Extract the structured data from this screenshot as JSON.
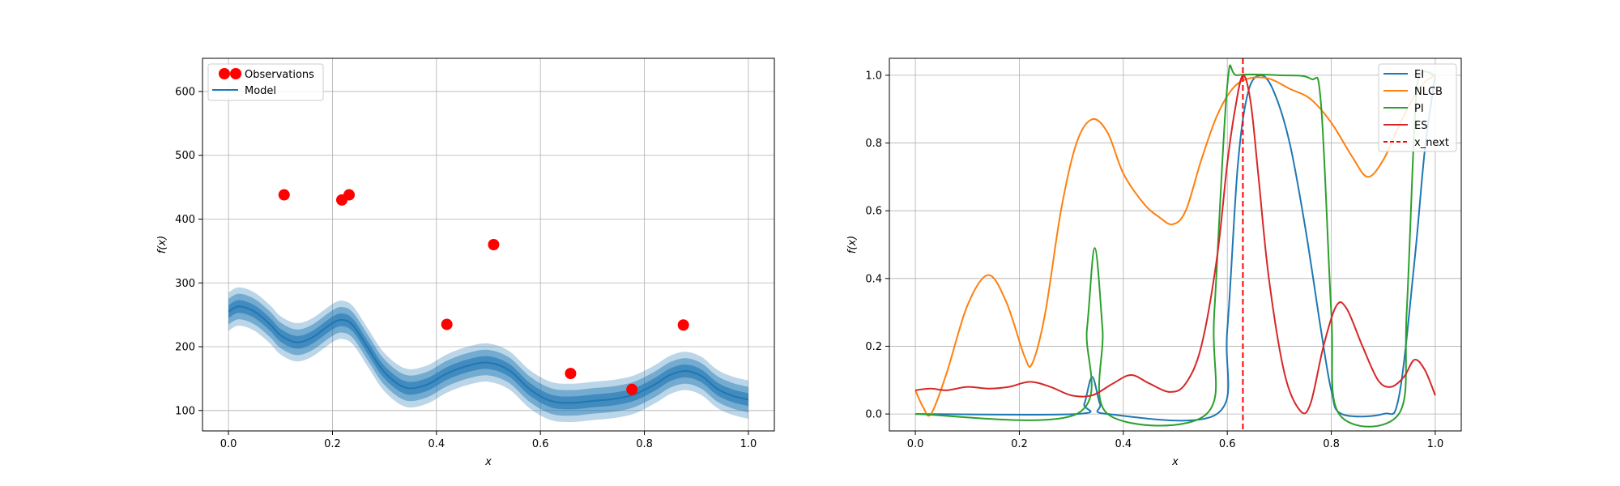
{
  "chart_data": [
    {
      "type": "line",
      "xlabel": "x",
      "ylabel": "f(x)",
      "xlim": [
        -0.05,
        1.05
      ],
      "ylim": [
        68,
        652
      ],
      "xticks": [
        0.0,
        0.2,
        0.4,
        0.6,
        0.8,
        1.0
      ],
      "xtick_labels": [
        "0.0",
        "0.2",
        "0.4",
        "0.6",
        "0.8",
        "1.0"
      ],
      "yticks": [
        100,
        200,
        300,
        400,
        500,
        600
      ],
      "ytick_labels": [
        "100",
        "200",
        "300",
        "400",
        "500",
        "600"
      ],
      "grid": true,
      "legend": {
        "placement": "top-left",
        "entries": [
          "Observations",
          "Model"
        ]
      },
      "colors": {
        "observations": "#ff0000",
        "model": "#1f77b4",
        "band": "#1f77b4"
      },
      "observations": {
        "name": "Observations",
        "x": [
          0.015,
          0.107,
          0.218,
          0.232,
          0.42,
          0.51,
          0.658,
          0.776,
          0.875
        ],
        "y": [
          628,
          438,
          430,
          438,
          235,
          360,
          158,
          133,
          234
        ]
      },
      "model": {
        "name": "Model",
        "x": [
          0.0,
          0.02,
          0.05,
          0.08,
          0.1,
          0.13,
          0.16,
          0.2,
          0.22,
          0.24,
          0.27,
          0.3,
          0.34,
          0.38,
          0.42,
          0.46,
          0.5,
          0.54,
          0.58,
          0.62,
          0.66,
          0.7,
          0.74,
          0.78,
          0.82,
          0.85,
          0.88,
          0.91,
          0.94,
          0.97,
          1.0
        ],
        "y": [
          255,
          263,
          255,
          235,
          218,
          207,
          214,
          237,
          242,
          233,
          196,
          160,
          136,
          140,
          158,
          170,
          175,
          163,
          133,
          115,
          112,
          115,
          118,
          125,
          141,
          156,
          162,
          154,
          134,
          123,
          117
        ],
        "band_widths": [
          10,
          20,
          30
        ]
      }
    },
    {
      "type": "line",
      "xlabel": "x",
      "ylabel": "f(x)",
      "xlim": [
        -0.05,
        1.05
      ],
      "ylim": [
        -0.05,
        1.05
      ],
      "xticks": [
        0.0,
        0.2,
        0.4,
        0.6,
        0.8,
        1.0
      ],
      "xtick_labels": [
        "0.0",
        "0.2",
        "0.4",
        "0.6",
        "0.8",
        "1.0"
      ],
      "yticks": [
        0.0,
        0.2,
        0.4,
        0.6,
        0.8,
        1.0
      ],
      "ytick_labels": [
        "0.0",
        "0.2",
        "0.4",
        "0.6",
        "0.8",
        "1.0"
      ],
      "grid": true,
      "legend": {
        "placement": "top-right",
        "entries": [
          "EI",
          "NLCB",
          "PI",
          "ES",
          "x_next"
        ]
      },
      "series": [
        {
          "name": "EI",
          "color": "#1f77b4",
          "x": [
            0.0,
            0.31,
            0.325,
            0.34,
            0.355,
            0.37,
            0.58,
            0.6,
            0.62,
            0.64,
            0.665,
            0.69,
            0.72,
            0.75,
            0.78,
            0.8,
            0.82,
            0.9,
            0.93,
            0.96,
            0.98,
            1.0
          ],
          "y": [
            0.0,
            0.0,
            0.03,
            0.11,
            0.03,
            0.0,
            0.0,
            0.25,
            0.73,
            0.95,
            1.0,
            0.95,
            0.8,
            0.55,
            0.25,
            0.07,
            0.0,
            0.0,
            0.05,
            0.45,
            0.78,
            1.0
          ]
        },
        {
          "name": "NLCB",
          "color": "#ff7f0e",
          "x": [
            0.0,
            0.015,
            0.03,
            0.06,
            0.1,
            0.14,
            0.175,
            0.21,
            0.225,
            0.25,
            0.28,
            0.31,
            0.34,
            0.37,
            0.4,
            0.44,
            0.47,
            0.495,
            0.52,
            0.55,
            0.58,
            0.61,
            0.64,
            0.68,
            0.72,
            0.76,
            0.8,
            0.84,
            0.87,
            0.9,
            0.93,
            0.96,
            0.98,
            1.0
          ],
          "y": [
            0.07,
            0.02,
            0.0,
            0.12,
            0.32,
            0.41,
            0.33,
            0.17,
            0.15,
            0.3,
            0.6,
            0.8,
            0.87,
            0.83,
            0.71,
            0.62,
            0.58,
            0.56,
            0.6,
            0.75,
            0.88,
            0.96,
            0.99,
            0.99,
            0.96,
            0.93,
            0.86,
            0.76,
            0.7,
            0.75,
            0.85,
            0.94,
            0.98,
            1.0
          ]
        },
        {
          "name": "PI",
          "color": "#2ca02c",
          "x": [
            0.0,
            0.31,
            0.33,
            0.345,
            0.36,
            0.37,
            0.56,
            0.575,
            0.6,
            0.62,
            0.7,
            0.76,
            0.78,
            0.8,
            0.815,
            0.93,
            0.945,
            0.96,
            0.97,
            1.0
          ],
          "y": [
            0.0,
            0.0,
            0.25,
            0.49,
            0.25,
            0.0,
            0.0,
            0.3,
            0.97,
            1.0,
            1.0,
            0.99,
            0.92,
            0.3,
            0.0,
            0.0,
            0.3,
            0.85,
            1.0,
            1.0
          ]
        },
        {
          "name": "ES",
          "color": "#d62728",
          "x": [
            0.0,
            0.03,
            0.06,
            0.1,
            0.14,
            0.18,
            0.22,
            0.26,
            0.3,
            0.34,
            0.38,
            0.415,
            0.45,
            0.49,
            0.52,
            0.55,
            0.58,
            0.6,
            0.615,
            0.63,
            0.645,
            0.66,
            0.68,
            0.71,
            0.74,
            0.76,
            0.785,
            0.81,
            0.83,
            0.86,
            0.89,
            0.915,
            0.94,
            0.96,
            0.98,
            1.0
          ],
          "y": [
            0.07,
            0.075,
            0.07,
            0.08,
            0.075,
            0.08,
            0.095,
            0.08,
            0.055,
            0.055,
            0.09,
            0.115,
            0.09,
            0.065,
            0.09,
            0.2,
            0.46,
            0.74,
            0.9,
            1.0,
            0.92,
            0.7,
            0.4,
            0.12,
            0.01,
            0.03,
            0.2,
            0.32,
            0.31,
            0.2,
            0.1,
            0.08,
            0.11,
            0.16,
            0.13,
            0.055
          ]
        }
      ],
      "x_next": {
        "name": "x_next",
        "x": 0.63,
        "color": "#ff0000"
      }
    }
  ]
}
